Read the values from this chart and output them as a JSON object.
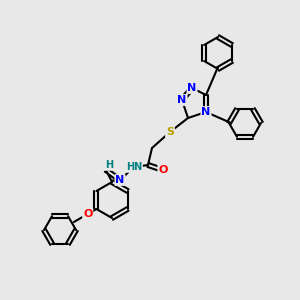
{
  "background_color": "#e8e8e8",
  "atom_colors": {
    "N": "#0000ff",
    "O": "#ff0000",
    "S": "#b8a000",
    "C": "#000000",
    "H": "#008080"
  },
  "bond_color": "#000000",
  "bond_width": 1.5,
  "font_size_atom": 8,
  "figsize": [
    3.0,
    3.0
  ],
  "dpi": 100
}
